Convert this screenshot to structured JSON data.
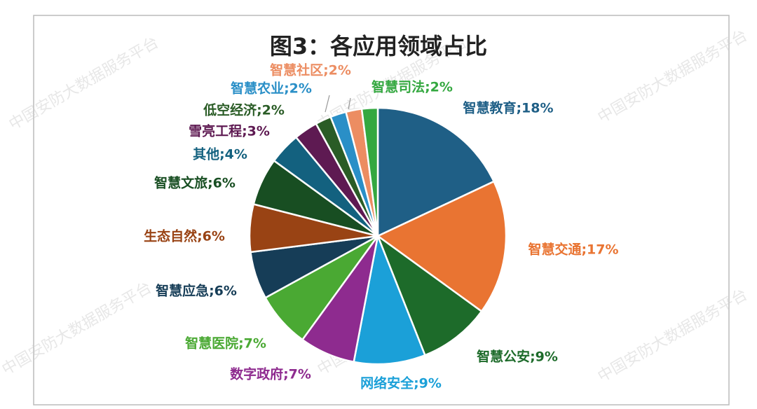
{
  "chart_data": {
    "type": "pie",
    "title": "图3：各应用领域占比",
    "watermark": "中国安防大数据服务平台",
    "values": [
      18,
      17,
      9,
      9,
      7,
      7,
      6,
      6,
      6,
      4,
      3,
      2,
      2,
      2,
      2
    ],
    "value_labels": [
      "智慧教育;18%",
      "智慧交通;17%",
      "智慧公安;9%",
      "网络安全;9%",
      "数字政府;7%",
      "智慧医院;7%",
      "智慧应急;6%",
      "生态自然;6%",
      "智慧文旅;6%",
      "其他;4%",
      "雪亮工程;3%",
      "低空经济;2%",
      "智慧农业;2%",
      "智慧社区;2%",
      "智慧司法;2%"
    ],
    "colors": [
      "#1f5f86",
      "#e97432",
      "#1d6b2a",
      "#1ba0d8",
      "#8e2b8f",
      "#4aa933",
      "#163d57",
      "#994314",
      "#184e22",
      "#13617f",
      "#5e1a52",
      "#2a5c26",
      "#2a8fc7",
      "#ec8d62",
      "#34a840"
    ]
  }
}
